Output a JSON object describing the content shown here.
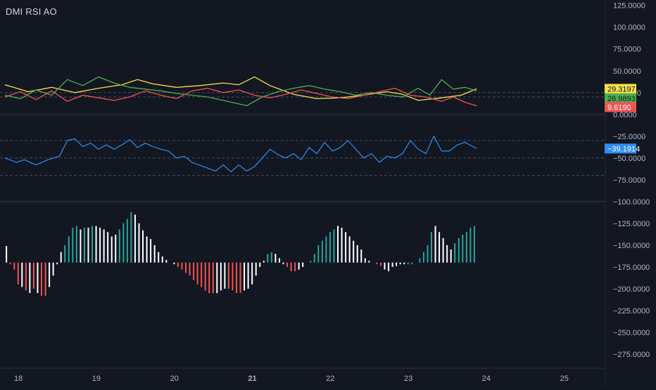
{
  "header": {
    "title": "DMI RSI AO"
  },
  "colors": {
    "background": "#131722",
    "grid": "#2a2e39",
    "axis_text": "#b2b5be",
    "dmi_adx": "#f5e04b",
    "dmi_plus": "#4caf50",
    "dmi_minus": "#f05350",
    "rsi": "#2e8ff0",
    "ao_up": "#ffffff",
    "ao_teal": "#26a69a",
    "ao_red": "#ef5350"
  },
  "chart_data": {
    "type": "line",
    "x_ticks": [
      {
        "label": "18",
        "bold": false
      },
      {
        "label": "19",
        "bold": false
      },
      {
        "label": "20",
        "bold": false
      },
      {
        "label": "21",
        "bold": true
      },
      {
        "label": "22",
        "bold": false
      },
      {
        "label": "23",
        "bold": false
      },
      {
        "label": "24",
        "bold": false
      },
      {
        "label": "25",
        "bold": false
      }
    ],
    "y_ticks": [
      125,
      100,
      75,
      50,
      25,
      0,
      -25,
      -50,
      -75,
      -100,
      -125,
      -150,
      -175,
      -200,
      -225,
      -250,
      -275
    ],
    "y_tick_labels": [
      "125.0000",
      "100.0000",
      "75.0000",
      "50.0000",
      "25.0000",
      "0.0000",
      "−25.0000",
      "−50.0000",
      "−75.0000",
      "−100.0000",
      "−125.0000",
      "−150.0000",
      "−175.0000",
      "−200.0000",
      "−225.0000",
      "−250.0000",
      "−275.0000"
    ],
    "ylim": [
      -295,
      128
    ],
    "xlim": [
      17.9,
      25.6
    ],
    "dmi_guides": [
      20,
      25
    ],
    "rsi_guides": [
      -30,
      -50,
      -70
    ],
    "dmi_series": [
      {
        "key": "adx",
        "x": [
          17.9,
          18.2,
          18.5,
          18.8,
          19.1,
          19.4,
          19.6,
          19.8,
          20.1,
          20.4,
          20.7,
          20.9,
          21.1,
          21.3,
          21.6,
          21.9,
          22.2,
          22.5,
          22.8,
          23.0,
          23.2,
          23.5,
          23.75,
          23.95
        ],
        "y": [
          34,
          26,
          31,
          25,
          30,
          34,
          40,
          35,
          31,
          33,
          36,
          34,
          43,
          33,
          23,
          18,
          19,
          22,
          26,
          23,
          16,
          19,
          22,
          29.3197
        ]
      },
      {
        "key": "plus",
        "x": [
          17.9,
          18.1,
          18.3,
          18.5,
          18.7,
          18.9,
          19.1,
          19.3,
          19.5,
          19.7,
          19.9,
          20.1,
          20.3,
          20.5,
          20.7,
          20.9,
          21.0,
          21.2,
          21.4,
          21.6,
          21.8,
          22.0,
          22.2,
          22.4,
          22.6,
          22.8,
          23.0,
          23.2,
          23.35,
          23.5,
          23.65,
          23.8,
          23.95
        ],
        "y": [
          22,
          18,
          28,
          22,
          40,
          33,
          43,
          36,
          31,
          29,
          27,
          24,
          22,
          20,
          16,
          12,
          10,
          20,
          26,
          30,
          33,
          29,
          26,
          22,
          25,
          22,
          20,
          30,
          22,
          40,
          29,
          31,
          26.9893
        ]
      },
      {
        "key": "minus",
        "x": [
          17.9,
          18.1,
          18.3,
          18.5,
          18.7,
          18.9,
          19.1,
          19.3,
          19.5,
          19.7,
          19.9,
          20.1,
          20.3,
          20.5,
          20.7,
          20.9,
          21.1,
          21.3,
          21.5,
          21.7,
          21.9,
          22.1,
          22.3,
          22.5,
          22.7,
          22.9,
          23.1,
          23.3,
          23.5,
          23.65,
          23.8,
          23.95
        ],
        "y": [
          20,
          26,
          17,
          27,
          15,
          22,
          19,
          16,
          20,
          27,
          22,
          18,
          27,
          30,
          25,
          28,
          22,
          19,
          23,
          28,
          24,
          20,
          18,
          22,
          26,
          30,
          22,
          20,
          15,
          20,
          14,
          9.619
        ]
      }
    ],
    "dmi_last_labels": [
      {
        "key": "adx",
        "value": "29.3197"
      },
      {
        "key": "plus",
        "value": "26.9893"
      },
      {
        "key": "minus",
        "value": "9.6190"
      }
    ],
    "rsi_series": {
      "x": [
        17.9,
        18.05,
        18.15,
        18.3,
        18.45,
        18.6,
        18.7,
        18.8,
        18.9,
        19.0,
        19.1,
        19.2,
        19.3,
        19.4,
        19.5,
        19.6,
        19.7,
        19.8,
        19.9,
        20.0,
        20.1,
        20.2,
        20.3,
        20.45,
        20.6,
        20.7,
        20.8,
        20.9,
        21.0,
        21.1,
        21.2,
        21.3,
        21.4,
        21.5,
        21.6,
        21.7,
        21.8,
        21.9,
        22.0,
        22.1,
        22.2,
        22.3,
        22.4,
        22.5,
        22.6,
        22.7,
        22.8,
        22.9,
        23.0,
        23.1,
        23.2,
        23.3,
        23.4,
        23.5,
        23.6,
        23.7,
        23.8,
        23.95
      ],
      "y": [
        -50,
        -55,
        -52,
        -58,
        -52,
        -48,
        -30,
        -28,
        -37,
        -33,
        -40,
        -35,
        -40,
        -35,
        -29,
        -38,
        -33,
        -37,
        -40,
        -42,
        -50,
        -48,
        -55,
        -60,
        -65,
        -58,
        -66,
        -58,
        -65,
        -60,
        -50,
        -40,
        -46,
        -50,
        -45,
        -52,
        -38,
        -45,
        -32,
        -42,
        -38,
        -30,
        -40,
        -50,
        -45,
        -55,
        -48,
        -50,
        -45,
        -30,
        -40,
        -45,
        -25,
        -42,
        -42,
        -35,
        -32,
        -39.1914
      ]
    },
    "rsi_last_label": "−39.1914",
    "ao_baseline": -170,
    "ao_bars": {
      "x": [
        17.92,
        17.97,
        18.02,
        18.07,
        18.12,
        18.17,
        18.22,
        18.27,
        18.32,
        18.37,
        18.42,
        18.47,
        18.52,
        18.57,
        18.62,
        18.67,
        18.72,
        18.77,
        18.82,
        18.87,
        18.92,
        18.97,
        19.02,
        19.07,
        19.12,
        19.17,
        19.22,
        19.27,
        19.32,
        19.37,
        19.42,
        19.47,
        19.52,
        19.57,
        19.62,
        19.67,
        19.72,
        19.77,
        19.82,
        19.87,
        19.92,
        19.97,
        20.02,
        20.07,
        20.12,
        20.17,
        20.22,
        20.27,
        20.32,
        20.37,
        20.42,
        20.47,
        20.52,
        20.57,
        20.62,
        20.67,
        20.72,
        20.77,
        20.82,
        20.87,
        20.92,
        20.97,
        21.02,
        21.07,
        21.12,
        21.17,
        21.22,
        21.27,
        21.32,
        21.37,
        21.42,
        21.47,
        21.52,
        21.57,
        21.62,
        21.67,
        21.72,
        21.77,
        21.82,
        21.87,
        21.92,
        21.97,
        22.02,
        22.07,
        22.12,
        22.17,
        22.22,
        22.27,
        22.32,
        22.37,
        22.42,
        22.47,
        22.52,
        22.57,
        22.62,
        22.67,
        22.72,
        22.77,
        22.82,
        22.87,
        22.92,
        22.97,
        23.02,
        23.07,
        23.12,
        23.17,
        23.22,
        23.27,
        23.32,
        23.37,
        23.42,
        23.47,
        23.52,
        23.57,
        23.62,
        23.67,
        23.72,
        23.77,
        23.82,
        23.87,
        23.92
      ],
      "v": [
        -151,
        -172,
        -178,
        -195,
        -198,
        -202,
        -205,
        -200,
        -205,
        -208,
        -208,
        -198,
        -185,
        -172,
        -158,
        -150,
        -140,
        -130,
        -128,
        -132,
        -130,
        -130,
        -128,
        -128,
        -130,
        -132,
        -135,
        -140,
        -138,
        -132,
        -125,
        -120,
        -112,
        -115,
        -125,
        -133,
        -140,
        -143,
        -150,
        -158,
        -163,
        -167,
        -170,
        -172,
        -175,
        -178,
        -182,
        -185,
        -190,
        -195,
        -198,
        -202,
        -205,
        -205,
        -205,
        -202,
        -200,
        -200,
        -202,
        -205,
        -205,
        -202,
        -200,
        -195,
        -185,
        -175,
        -168,
        -160,
        -158,
        -160,
        -165,
        -172,
        -175,
        -180,
        -180,
        -178,
        -175,
        -170,
        -168,
        -160,
        -150,
        -145,
        -140,
        -135,
        -132,
        -128,
        -130,
        -135,
        -140,
        -145,
        -150,
        -155,
        -165,
        -168,
        -170,
        -172,
        -174,
        -178,
        -180,
        -175,
        -174,
        -172,
        -172,
        -172,
        -172,
        -170,
        -165,
        -158,
        -150,
        -135,
        -128,
        -135,
        -142,
        -150,
        -155,
        -148,
        -142,
        -138,
        -135,
        -130,
        -128
      ],
      "c": [
        "w",
        "r",
        "r",
        "r",
        "w",
        "r",
        "w",
        "r",
        "w",
        "r",
        "r",
        "w",
        "w",
        "w",
        "w",
        "t",
        "t",
        "t",
        "t",
        "w",
        "t",
        "w",
        "t",
        "w",
        "w",
        "w",
        "w",
        "w",
        "w",
        "t",
        "t",
        "t",
        "t",
        "w",
        "w",
        "w",
        "w",
        "w",
        "w",
        "w",
        "w",
        "w",
        "w",
        "w",
        "r",
        "r",
        "r",
        "r",
        "r",
        "r",
        "r",
        "r",
        "r",
        "r",
        "w",
        "w",
        "w",
        "r",
        "r",
        "r",
        "r",
        "w",
        "w",
        "w",
        "w",
        "w",
        "w",
        "t",
        "t",
        "w",
        "w",
        "w",
        "r",
        "r",
        "r",
        "w",
        "w",
        "w",
        "t",
        "t",
        "t",
        "t",
        "t",
        "t",
        "t",
        "w",
        "w",
        "w",
        "w",
        "w",
        "w",
        "w",
        "w",
        "w",
        "w",
        "r",
        "r",
        "w",
        "w",
        "w",
        "w",
        "w",
        "w",
        "t",
        "t",
        "t",
        "t",
        "t",
        "t",
        "t",
        "w",
        "w",
        "w",
        "w",
        "w",
        "t",
        "t",
        "t",
        "t",
        "t",
        "t"
      ]
    }
  }
}
